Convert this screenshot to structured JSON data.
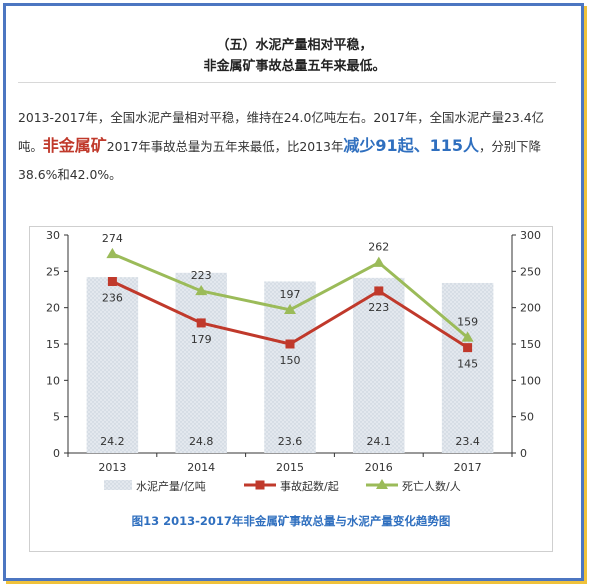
{
  "header": {
    "title_line1": "（五）水泥产量相对平稳，",
    "title_line2": "非金属矿事故总量五年来最低。"
  },
  "paragraph": {
    "p1": "2013-2017年，全国水泥产量相对平稳，维持在24.0亿吨左右。2017年，全国水泥产量23.4亿吨。",
    "highlight_red": "非金属矿",
    "p2": "2017年事故总量为五年来最低，比2013年",
    "highlight_blue": "减少91起、115人",
    "p3": "，分别下降38.6%和42.0%。"
  },
  "colors": {
    "bar_fill": "#e3e8ee",
    "bar_hatch": "#cdd6df",
    "accidents_line": "#c0392b",
    "deaths_line": "#9bbb59",
    "caption": "#2f6fbf",
    "frame": "#4c76c1",
    "frame_shadow": "#f0c23b"
  },
  "chart_data": {
    "type": "bar+line",
    "categories": [
      "2013",
      "2014",
      "2015",
      "2016",
      "2017"
    ],
    "series": [
      {
        "name": "水泥产量/亿吨",
        "type": "bar",
        "axis": "left",
        "values": [
          24.2,
          24.8,
          23.6,
          24.1,
          23.4
        ]
      },
      {
        "name": "事故起数/起",
        "type": "line",
        "axis": "right",
        "marker": "square",
        "values": [
          236,
          179,
          150,
          223,
          145
        ]
      },
      {
        "name": "死亡人数/人",
        "type": "line",
        "axis": "right",
        "marker": "triangle",
        "values": [
          274,
          223,
          197,
          262,
          159
        ]
      }
    ],
    "y_left": {
      "min": 0,
      "max": 30,
      "ticks": [
        0,
        5,
        10,
        15,
        20,
        25,
        30
      ]
    },
    "y_right": {
      "min": 0,
      "max": 300,
      "ticks": [
        0,
        50,
        100,
        150,
        200,
        250,
        300
      ]
    },
    "legend_position": "bottom",
    "grid": false,
    "caption": "图13  2013-2017年非金属矿事故总量与水泥产量变化趋势图"
  }
}
